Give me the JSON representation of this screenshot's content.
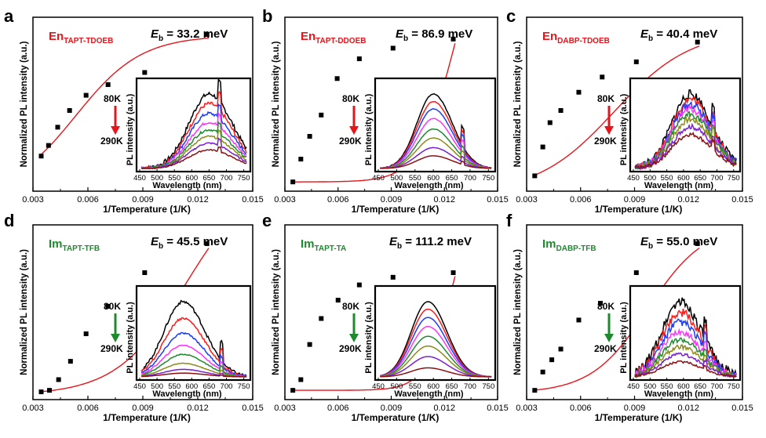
{
  "colors": {
    "axis": "#000000",
    "fit": "#e8141b",
    "en_label": "#e8141b",
    "im_label": "#1d8a2e",
    "en_arrow": "#e8141b",
    "im_arrow": "#1d8a2e",
    "spectra": [
      "#000000",
      "#ff1a1a",
      "#1a3cff",
      "#ff33ff",
      "#1e8a2e",
      "#8b8b1a",
      "#7a1fd1",
      "#8b1010"
    ]
  },
  "shared": {
    "xlabel": "1/Temperature (1/K)",
    "ylabel": "Normalized PL intensity (a.u.)",
    "xticks": [
      "0.003",
      "0.006",
      "0.009",
      "0.012",
      "0.015"
    ],
    "xlim": [
      0.003,
      0.015
    ],
    "ylim": [
      0,
      1
    ],
    "eb_symbol": "E",
    "eb_sub": "b",
    "inset": {
      "xlabel": "Wavelength (nm)",
      "ylabel": "PL intensity (a.u.)",
      "xticks": [
        "450",
        "500",
        "550",
        "600",
        "650",
        "700",
        "750"
      ],
      "xlim": [
        450,
        760
      ],
      "temp_high": "80K",
      "temp_low": "290K"
    }
  },
  "chart_data": [
    {
      "type": "scatter",
      "letter": "a",
      "name_main": "En",
      "name_sub": "TAPT-TDOEB",
      "group": "en",
      "eb_value": " = 33.2 meV",
      "x": [
        0.00345,
        0.00385,
        0.00435,
        0.005,
        0.0059,
        0.0071,
        0.0091,
        0.0125
      ],
      "y": [
        0.2,
        0.27,
        0.39,
        0.5,
        0.6,
        0.67,
        0.75,
        1.0
      ],
      "fit": {
        "a": 20,
        "b": 560
      },
      "inset": {
        "peak": 650,
        "width": 58,
        "spike": 680,
        "amps": [
          1.0,
          0.87,
          0.74,
          0.62,
          0.52,
          0.43,
          0.34,
          0.25
        ],
        "noise": 0.03
      }
    },
    {
      "type": "scatter",
      "letter": "b",
      "name_main": "En",
      "name_sub": "TAPT-DDOEB",
      "group": "en",
      "eb_value": " = 86.9 meV",
      "x": [
        0.00345,
        0.0039,
        0.0044,
        0.00505,
        0.00595,
        0.0072,
        0.0091,
        0.0125
      ],
      "y": [
        0.03,
        0.18,
        0.33,
        0.47,
        0.71,
        0.84,
        0.91,
        0.97
      ],
      "fit": {
        "a": 300000.0,
        "b": 1008
      },
      "inset": {
        "peak": 600,
        "width": 45,
        "spike": 680,
        "amps": [
          1.0,
          0.9,
          0.8,
          0.67,
          0.53,
          0.41,
          0.28,
          0.17
        ],
        "noise": 0.005
      }
    },
    {
      "type": "scatter",
      "letter": "c",
      "name_main": "En",
      "name_sub": "DABP-TDOEB",
      "group": "en",
      "eb_value": " = 40.4 meV",
      "x": [
        0.00345,
        0.0039,
        0.0043,
        0.0049,
        0.0059,
        0.0072,
        0.0091,
        0.0125
      ],
      "y": [
        0.07,
        0.26,
        0.42,
        0.5,
        0.62,
        0.72,
        0.82,
        0.95
      ],
      "fit": {
        "a": 40,
        "b": 469
      },
      "inset": {
        "peak": 620,
        "width": 55,
        "spike": 690,
        "amps": [
          1.0,
          0.93,
          0.86,
          0.8,
          0.73,
          0.66,
          0.56,
          0.46
        ],
        "noise": 0.06
      }
    },
    {
      "type": "scatter",
      "letter": "d",
      "name_main": "Im",
      "name_sub": "TAPT-TFB",
      "group": "im",
      "eb_value": " = 45.5 meV",
      "x": [
        0.00345,
        0.0039,
        0.0044,
        0.00505,
        0.0059,
        0.0071,
        0.0091,
        0.0125
      ],
      "y": [
        0.02,
        0.03,
        0.1,
        0.22,
        0.4,
        0.58,
        0.8,
        0.99
      ],
      "fit": {
        "a": 400,
        "b": 528
      },
      "inset": {
        "peak": 575,
        "width": 55,
        "spike": 685,
        "amps": [
          1.0,
          0.78,
          0.58,
          0.42,
          0.3,
          0.18,
          0.1,
          0.05
        ],
        "noise": 0.02
      }
    },
    {
      "type": "scatter",
      "letter": "e",
      "name_main": "Im",
      "name_sub": "TAPT-TA",
      "group": "im",
      "eb_value": " = 111.2 meV",
      "x": [
        0.00345,
        0.0039,
        0.0044,
        0.00505,
        0.006,
        0.0072,
        0.0091,
        0.0125
      ],
      "y": [
        0.03,
        0.1,
        0.33,
        0.5,
        0.62,
        0.72,
        0.77,
        0.8
      ],
      "fit": {
        "a": 10000000.0,
        "b": 1290
      },
      "inset": {
        "peak": 585,
        "width": 45,
        "spike": 0,
        "amps": [
          1.0,
          0.9,
          0.79,
          0.67,
          0.54,
          0.41,
          0.27,
          0.12
        ],
        "noise": 0.0
      }
    },
    {
      "type": "scatter",
      "letter": "f",
      "name_main": "Im",
      "name_sub": "DABP-TFB",
      "group": "im",
      "eb_value": " = 55.0 meV",
      "x": [
        0.00345,
        0.0039,
        0.0044,
        0.0049,
        0.0059,
        0.0071,
        0.0091,
        0.0125
      ],
      "y": [
        0.03,
        0.15,
        0.23,
        0.3,
        0.49,
        0.6,
        0.8,
        0.99
      ],
      "fit": {
        "a": 500,
        "b": 638
      },
      "inset": {
        "peak": 590,
        "width": 55,
        "spike": 665,
        "amps": [
          1.0,
          0.86,
          0.73,
          0.6,
          0.5,
          0.4,
          0.3,
          0.2
        ],
        "noise": 0.07
      }
    }
  ]
}
